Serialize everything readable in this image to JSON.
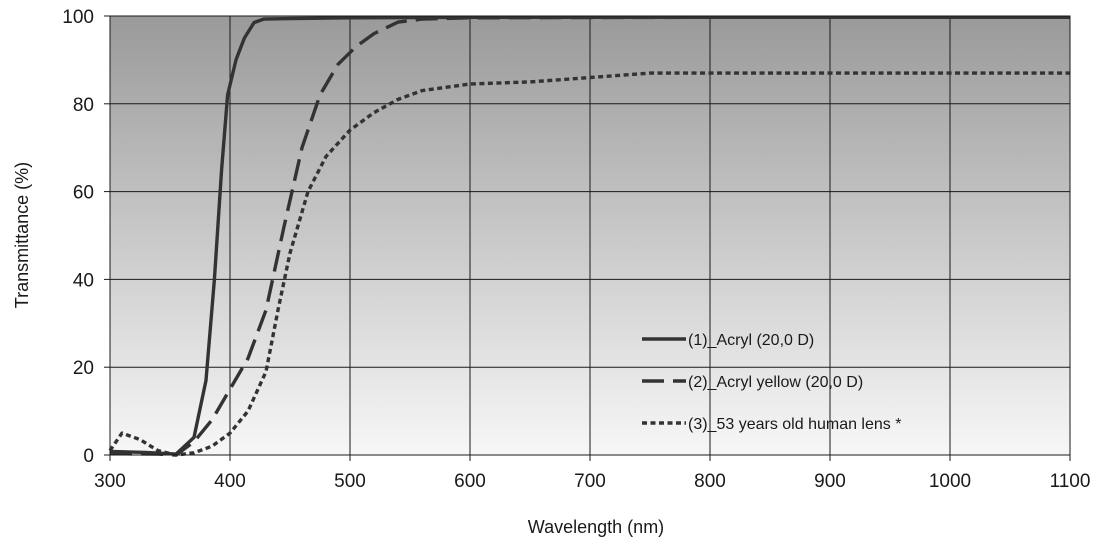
{
  "chart_data": {
    "type": "line",
    "title": "",
    "xlabel": "Wavelength (nm)",
    "ylabel": "Transmittance (%)",
    "xlim": [
      300,
      1100
    ],
    "ylim": [
      0,
      100
    ],
    "x_ticks": [
      300,
      400,
      500,
      600,
      700,
      800,
      900,
      1000,
      1100
    ],
    "y_ticks": [
      0,
      20,
      40,
      60,
      80,
      100
    ],
    "grid": true,
    "legend_position": "lower-right",
    "background": "gray gradient (dark at top, light at bottom)",
    "series": [
      {
        "name": "(1)_Acryl  (20,0 D)",
        "style": "solid",
        "color": "#333333",
        "points": [
          [
            300,
            0.8
          ],
          [
            330,
            0.6
          ],
          [
            355,
            0.2
          ],
          [
            370,
            4
          ],
          [
            380,
            17
          ],
          [
            387,
            40
          ],
          [
            393,
            65
          ],
          [
            398,
            82
          ],
          [
            405,
            90
          ],
          [
            412,
            95
          ],
          [
            420,
            98.5
          ],
          [
            428,
            99.3
          ],
          [
            450,
            99.4
          ],
          [
            500,
            99.6
          ],
          [
            600,
            99.7
          ],
          [
            800,
            99.7
          ],
          [
            1000,
            99.7
          ],
          [
            1100,
            99.7
          ]
        ]
      },
      {
        "name": "(2)_Acryl yellow (20,0 D)",
        "style": "dashed",
        "color": "#333333",
        "points": [
          [
            300,
            0.3
          ],
          [
            340,
            0.2
          ],
          [
            355,
            0
          ],
          [
            370,
            3
          ],
          [
            385,
            8
          ],
          [
            400,
            15
          ],
          [
            415,
            22
          ],
          [
            430,
            33
          ],
          [
            445,
            52
          ],
          [
            460,
            70
          ],
          [
            475,
            82
          ],
          [
            490,
            89
          ],
          [
            505,
            93
          ],
          [
            520,
            96
          ],
          [
            540,
            98.6
          ],
          [
            560,
            99.3
          ],
          [
            600,
            99.6
          ],
          [
            800,
            99.7
          ],
          [
            1100,
            99.7
          ]
        ]
      },
      {
        "name": "(3)_53 years old  human lens *",
        "style": "dotted",
        "color": "#333333",
        "points": [
          [
            300,
            1
          ],
          [
            310,
            5
          ],
          [
            325,
            3.5
          ],
          [
            340,
            1
          ],
          [
            355,
            0
          ],
          [
            370,
            0.5
          ],
          [
            385,
            2
          ],
          [
            400,
            5
          ],
          [
            415,
            10
          ],
          [
            430,
            19
          ],
          [
            440,
            33
          ],
          [
            450,
            46
          ],
          [
            465,
            60
          ],
          [
            480,
            68
          ],
          [
            500,
            74
          ],
          [
            520,
            78
          ],
          [
            540,
            81
          ],
          [
            560,
            83
          ],
          [
            600,
            84.5
          ],
          [
            650,
            85
          ],
          [
            700,
            86
          ],
          [
            750,
            87
          ],
          [
            800,
            87
          ],
          [
            900,
            87
          ],
          [
            1000,
            87
          ],
          [
            1100,
            87
          ]
        ]
      }
    ],
    "annotation_mark": "*"
  }
}
